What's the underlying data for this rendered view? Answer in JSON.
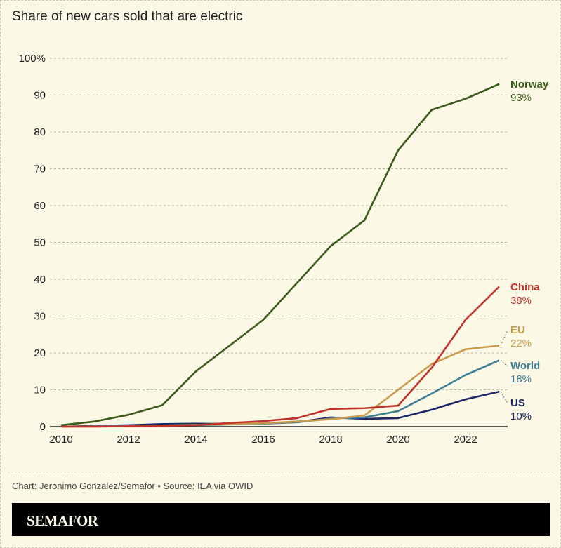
{
  "title": "Share of new cars sold that are electric",
  "credit": "Chart: Jeronimo Gonzalez/Semafor • Source: IEA via OWID",
  "brand": "SEMAFOR",
  "chart_data": {
    "type": "line",
    "title": "Share of new cars sold that are electric",
    "x": [
      2010,
      2011,
      2012,
      2013,
      2014,
      2015,
      2016,
      2017,
      2018,
      2019,
      2020,
      2021,
      2022,
      2023
    ],
    "xticks": [
      "2010",
      "2012",
      "2014",
      "2016",
      "2018",
      "2020",
      "2022"
    ],
    "yticks": [
      "0",
      "10",
      "20",
      "30",
      "40",
      "50",
      "60",
      "70",
      "80",
      "90",
      "100%"
    ],
    "ylim": [
      0,
      100
    ],
    "grid": true,
    "series": [
      {
        "name": "Norway",
        "end_label": "93%",
        "color": "#3b5a1c",
        "values": [
          0.4,
          1.4,
          3.2,
          5.8,
          15,
          22,
          29,
          39,
          49,
          56,
          75,
          86,
          89,
          93
        ]
      },
      {
        "name": "China",
        "end_label": "38%",
        "color": "#c0332a",
        "values": [
          0,
          0,
          0.1,
          0.2,
          0.4,
          1,
          1.5,
          2.3,
          4.8,
          5,
          5.7,
          16,
          29,
          38
        ]
      },
      {
        "name": "EU",
        "end_label": "22%",
        "color": "#c89a4a",
        "values": [
          0,
          0,
          0.1,
          0.3,
          0.5,
          0.7,
          0.9,
          1.4,
          2,
          3,
          10,
          17,
          21,
          22
        ]
      },
      {
        "name": "World",
        "end_label": "18%",
        "color": "#3f7f95",
        "values": [
          0,
          0.1,
          0.2,
          0.3,
          0.4,
          0.6,
          0.8,
          1.2,
          2.2,
          2.5,
          4.2,
          9,
          14,
          18
        ]
      },
      {
        "name": "US",
        "end_label": "10%",
        "color": "#1c2566",
        "values": [
          0,
          0.2,
          0.4,
          0.7,
          0.8,
          0.7,
          0.9,
          1.2,
          2.5,
          2.1,
          2.3,
          4.6,
          7.4,
          9.5
        ]
      }
    ]
  }
}
